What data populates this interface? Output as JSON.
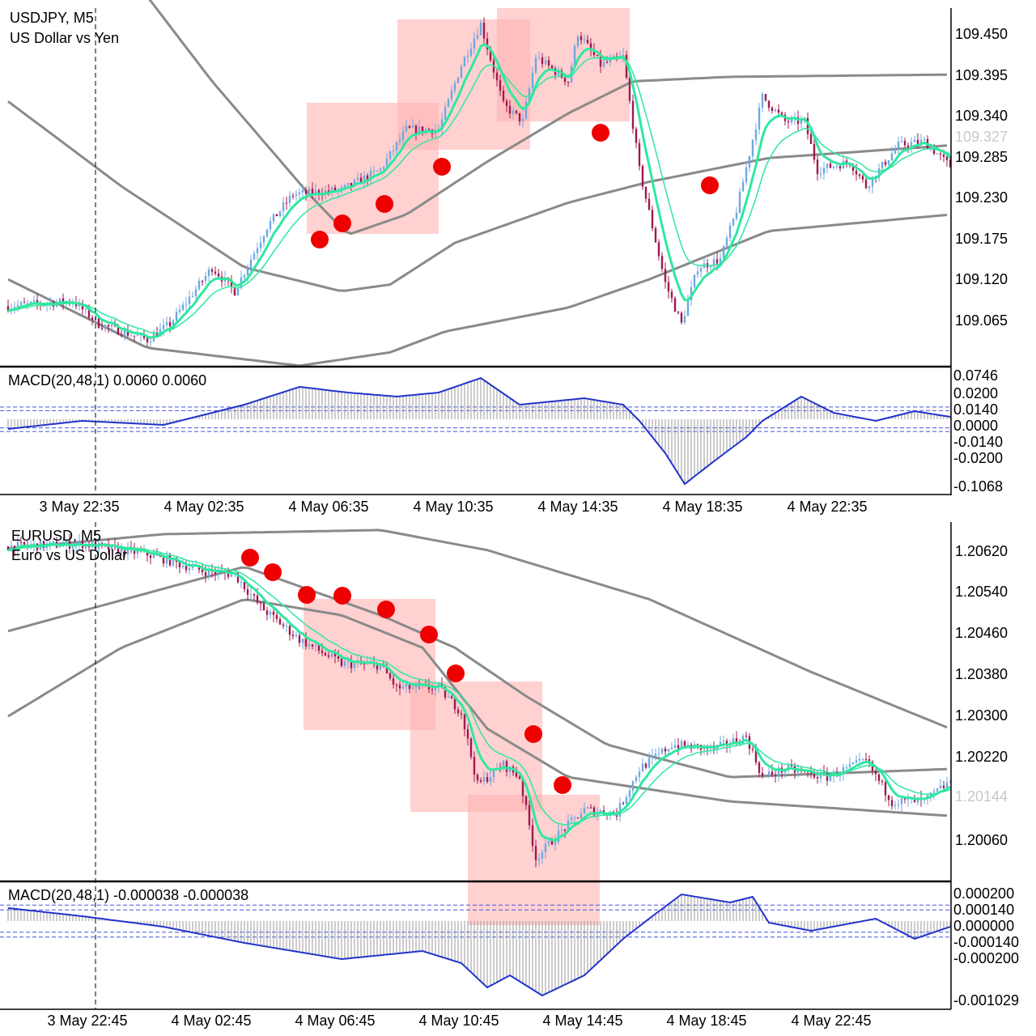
{
  "colors": {
    "up": "#6fa8e0",
    "down": "#a01850",
    "ma": "#2ee8a0",
    "band": "#8a8a8a",
    "macd": "#2233cc",
    "hist": "#999999",
    "box": "#ffb3b3",
    "dot": "#ee0000"
  },
  "chart_data": [
    {
      "type": "candlestick",
      "symbol": "USDJPY, M5",
      "description": "US Dollar vs Yen",
      "ylim": [
        109.011,
        109.491
      ],
      "y_ticks": [
        "109.450",
        "109.395",
        "109.340",
        "109.285",
        "109.230",
        "109.175",
        "109.120",
        "109.065"
      ],
      "current_price": "109.327",
      "close_path": {
        "bar": [
          0,
          20,
          28,
          43,
          50,
          63,
          70,
          80,
          88,
          103,
          115,
          123,
          133,
          140,
          146,
          153,
          159,
          163,
          173,
          176,
          183,
          190,
          195,
          203,
          208,
          213,
          220,
          225,
          233,
          240,
          246,
          250,
          260,
          265,
          275,
          283,
          291
        ],
        "price": [
          109.091,
          109.098,
          109.067,
          109.046,
          109.067,
          109.143,
          109.111,
          109.198,
          109.241,
          109.247,
          109.274,
          109.328,
          109.328,
          109.415,
          109.47,
          109.361,
          109.339,
          109.426,
          109.393,
          109.458,
          109.415,
          109.426,
          109.274,
          109.122,
          109.067,
          109.143,
          109.154,
          109.22,
          109.372,
          109.339,
          109.339,
          109.274,
          109.285,
          109.252,
          109.307,
          109.312,
          109.279
        ]
      },
      "bands": {
        "upper": {
          "bar": [
            40,
            63,
            80,
            93,
            105,
            123,
            148,
            173,
            193,
            223,
            291
          ],
          "price": [
            109.524,
            109.393,
            109.307,
            109.241,
            109.187,
            109.214,
            109.285,
            109.35,
            109.393,
            109.399,
            109.402
          ]
        },
        "middle": {
          "bar": [
            0,
            35,
            73,
            103,
            118,
            138,
            173,
            198,
            235,
            291
          ],
          "price": [
            109.366,
            109.252,
            109.143,
            109.111,
            109.12,
            109.176,
            109.23,
            109.258,
            109.29,
            109.307
          ]
        },
        "lower": {
          "bar": [
            0,
            43,
            90,
            118,
            135,
            173,
            198,
            235,
            291
          ],
          "price": [
            109.127,
            109.035,
            109.011,
            109.029,
            109.057,
            109.089,
            109.127,
            109.192,
            109.214
          ]
        }
      },
      "x_ticks": [
        "3 May 22:35",
        "4 May 02:35",
        "4 May 06:35",
        "4 May 10:35",
        "4 May 14:35",
        "4 May 18:35",
        "4 May 22:35"
      ],
      "macd": {
        "label": "MACD(20,48,1) 0.0060 0.0060",
        "ylim": [
          -0.1068,
          0.0746
        ],
        "y_ticks": [
          "0.0746",
          "0.0200",
          "0.0140",
          "0.0000",
          "-0.0140",
          "-0.0200",
          "-0.1068"
        ],
        "levels": [
          0.02,
          0.014,
          -0.014,
          -0.02
        ],
        "bar": [
          0,
          23,
          48,
          58,
          73,
          90,
          105,
          120,
          133,
          146,
          158,
          178,
          190,
          195,
          203,
          209,
          218,
          228,
          233,
          245,
          255,
          268,
          280,
          291
        ],
        "value": [
          -0.0159,
          -0.0026,
          -0.0093,
          0.004,
          0.0238,
          0.053,
          0.0437,
          0.0371,
          0.0437,
          0.0675,
          0.0238,
          0.0344,
          0.0238,
          -0.0026,
          -0.0556,
          -0.1059,
          -0.0688,
          -0.0291,
          -0.0026,
          0.0371,
          0.0106,
          -0.0026,
          0.0132,
          0.004
        ]
      }
    },
    {
      "type": "candlestick",
      "symbol": "EURUSD, M5",
      "description": "Euro vs US Dollar",
      "ylim": [
        1.19951,
        1.2068
      ],
      "y_ticks": [
        "1.20620",
        "1.20540",
        "1.20460",
        "1.20380",
        "1.20300",
        "1.20220",
        "1.20060"
      ],
      "current_price": "1.20144",
      "close_path": {
        "bar": [
          0,
          23,
          43,
          60,
          70,
          78,
          90,
          103,
          115,
          120,
          133,
          140,
          145,
          153,
          158,
          163,
          170,
          178,
          188,
          195,
          205,
          218,
          228,
          233,
          240,
          253,
          265,
          273,
          283,
          291
        ],
        "price": [
          1.20629,
          1.20634,
          1.20614,
          1.20582,
          1.20575,
          1.20512,
          1.20449,
          1.20402,
          1.20399,
          1.20355,
          1.20355,
          1.20308,
          1.20167,
          1.20206,
          1.20182,
          1.20025,
          1.20072,
          1.20119,
          1.20112,
          1.20198,
          1.20245,
          1.20237,
          1.20261,
          1.20182,
          1.20198,
          1.20182,
          1.20214,
          1.20135,
          1.20135,
          1.20174
        ]
      },
      "bands": {
        "upper": {
          "bar": [
            0,
            48,
            115,
            148,
            198,
            248,
            291
          ],
          "price": [
            1.20625,
            1.20653,
            1.20661,
            1.20622,
            1.20527,
            1.20386,
            1.20276
          ]
        },
        "middle": {
          "bar": [
            0,
            73,
            115,
            138,
            160,
            185,
            223,
            291
          ],
          "price": [
            1.20465,
            1.2059,
            1.20496,
            1.20433,
            1.20339,
            1.20245,
            1.20182,
            1.20198
          ]
        },
        "lower": {
          "bar": [
            0,
            35,
            73,
            103,
            128,
            148,
            173,
            223,
            291
          ],
          "price": [
            1.203,
            1.20433,
            1.20527,
            1.20496,
            1.20433,
            1.20276,
            1.20182,
            1.20135,
            1.20107
          ]
        }
      },
      "x_ticks": [
        "3 May 22:45",
        "4 May 02:45",
        "4 May 06:45",
        "4 May 10:45",
        "4 May 14:45",
        "4 May 18:45",
        "4 May 22:45"
      ],
      "macd": {
        "label": "MACD(20,48,1) -0.000038 -0.000038",
        "ylim": [
          -0.001029,
          0.0002
        ],
        "y_ticks": [
          "0.000200",
          "0.000140",
          "0.000000",
          "-0.000140",
          "-0.000200",
          "-0.001029"
        ],
        "levels": [
          0.0002,
          0.00014,
          -0.00014,
          -0.0002
        ],
        "bar": [
          0,
          23,
          48,
          73,
          103,
          128,
          140,
          148,
          155,
          165,
          178,
          190,
          198,
          208,
          223,
          230,
          235,
          248,
          268,
          280,
          291
        ],
        "value": [
          0.000163,
          6.1e-05,
          -7.1e-05,
          -0.000274,
          -0.000477,
          -0.000376,
          -0.000528,
          -0.000833,
          -0.000681,
          -0.000934,
          -0.000681,
          -0.000223,
          3e-05,
          0.000335,
          0.000234,
          0.000305,
          -2e-05,
          -0.000122,
          3e-05,
          -0.000223,
          -7.1e-05
        ]
      }
    }
  ]
}
